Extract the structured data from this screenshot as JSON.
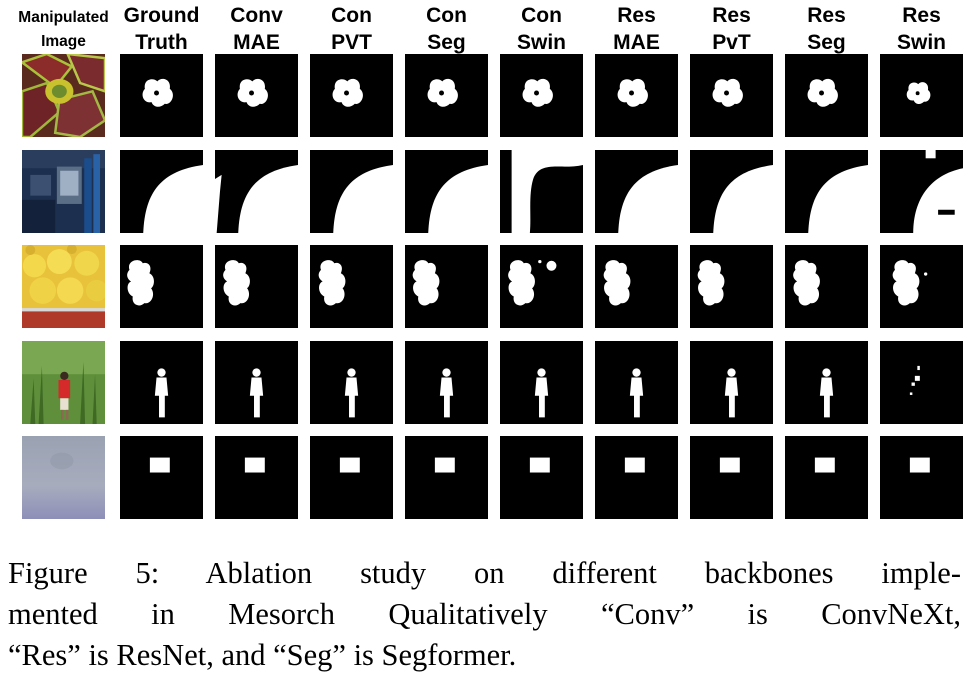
{
  "columns": [
    {
      "line1": "Manipulated",
      "line2": "Image"
    },
    {
      "line1": "Ground",
      "line2": "Truth"
    },
    {
      "line1": "Conv",
      "line2": "MAE"
    },
    {
      "line1": "Con",
      "line2": "PVT"
    },
    {
      "line1": "Con",
      "line2": "Seg"
    },
    {
      "line1": "Con",
      "line2": "Swin"
    },
    {
      "line1": "Res",
      "line2": "MAE"
    },
    {
      "line1": "Res",
      "line2": "PvT"
    },
    {
      "line1": "Res",
      "line2": "Seg"
    },
    {
      "line1": "Res",
      "line2": "Swin"
    }
  ],
  "rows": [
    {
      "image": "coleus-leaves-photo",
      "mask": "blob"
    },
    {
      "image": "office-shelves-photo",
      "mask": "curve"
    },
    {
      "image": "teddy-bears-photo",
      "mask": "bear"
    },
    {
      "image": "person-in-grass-photo",
      "mask": "person"
    },
    {
      "image": "blurry-gray-photo",
      "mask": "square"
    }
  ],
  "colors": {
    "mask_background": "#000000",
    "mask_foreground": "#ffffff"
  },
  "caption": {
    "line1": "Figure 5: Ablation study on different backbones imple-",
    "line2": "mented in Mesorch Qualitatively “Conv” is ConvNeXt,",
    "line3": "“Res” is ResNet, and “Seg” is Segformer."
  }
}
